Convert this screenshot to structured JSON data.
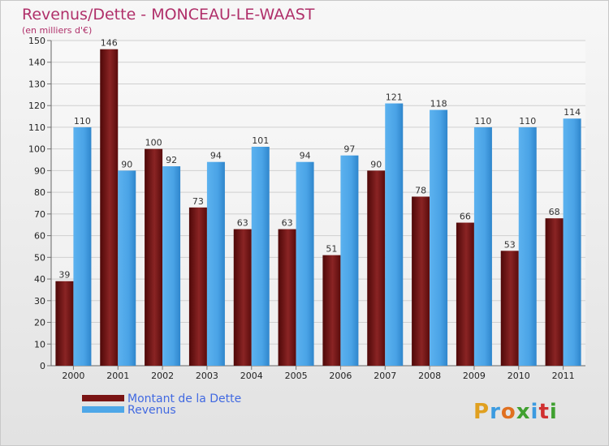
{
  "chart_data": {
    "type": "bar",
    "title": "Revenus/Dette - MONCEAU-LE-WAAST",
    "subtitle": "(en milliers d'€)",
    "categories": [
      "2000",
      "2001",
      "2002",
      "2003",
      "2004",
      "2005",
      "2006",
      "2007",
      "2008",
      "2009",
      "2010",
      "2011"
    ],
    "series": [
      {
        "name": "Montant de la Dette",
        "color": "#7a1414",
        "values": [
          39,
          146,
          100,
          73,
          63,
          63,
          51,
          90,
          78,
          66,
          53,
          68
        ]
      },
      {
        "name": "Revenus",
        "color": "#4ea7e8",
        "values": [
          110,
          90,
          92,
          94,
          101,
          94,
          97,
          121,
          118,
          110,
          110,
          114
        ]
      }
    ],
    "ylim": [
      0,
      150
    ],
    "yticks": [
      0,
      10,
      20,
      30,
      40,
      50,
      60,
      70,
      80,
      90,
      100,
      110,
      120,
      130,
      140,
      150
    ],
    "grid": true,
    "legend_position": "bottom-left",
    "xlabel": "",
    "ylabel": ""
  },
  "logo": {
    "text": "Proxiti"
  }
}
